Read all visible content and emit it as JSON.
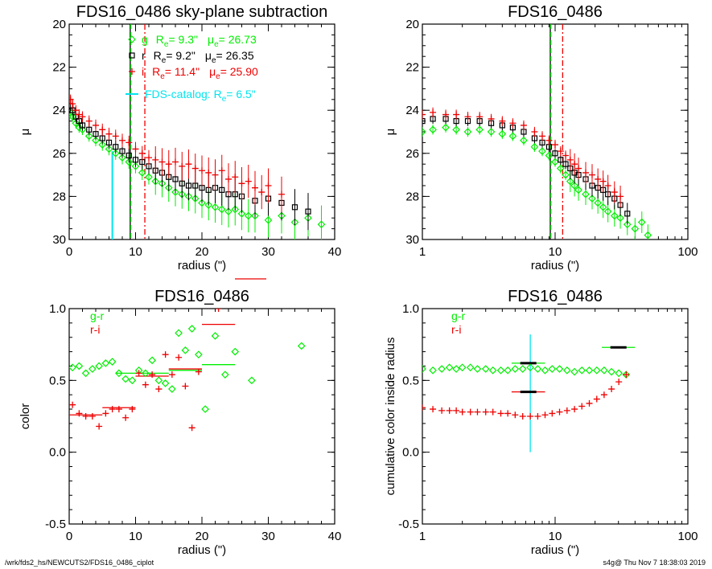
{
  "footer": {
    "path": "/wrk/fds2_hs/NEWCUTS2/FDS16_0486_ciplot",
    "stamp": "s4g@  Thu Nov  7 18:38:03 2019"
  },
  "colors": {
    "g": "#00ee00",
    "r": "#000000",
    "i": "#ee0000",
    "catalog": "#00e5ee"
  },
  "chart_data": [
    {
      "type": "scatter",
      "title": "FDS16_0486 sky-plane subtraction",
      "xlabel": "radius (\")",
      "ylabel": "μ",
      "xlim": [
        0,
        40
      ],
      "ylim": [
        30,
        20
      ],
      "xticks": [
        "0",
        "10",
        "20",
        "30",
        "40"
      ],
      "yticks": [
        "20",
        "22",
        "24",
        "26",
        "28",
        "30"
      ],
      "legend": [
        {
          "band": "g",
          "re": "R",
          "re_sub": "e",
          "re_val": "=   9.3\"",
          "mu": "μ",
          "mu_sub": "e",
          "mu_val": "= 26.73",
          "marker": "diamond",
          "color": "#00ee00"
        },
        {
          "band": "r",
          "re": "R",
          "re_sub": "e",
          "re_val": "=   9.2\"",
          "mu": "μ",
          "mu_sub": "e",
          "mu_val": "= 26.35",
          "marker": "square",
          "color": "#000000"
        },
        {
          "band": "i",
          "re": "R",
          "re_sub": "e",
          "re_val": "= 11.4\"",
          "mu": "μ",
          "mu_sub": "e",
          "mu_val": "= 25.90",
          "marker": "plus",
          "color": "#ee0000"
        }
      ],
      "catalog": {
        "label": "FDS-catalog: R",
        "sub": "e",
        "val": "=   6.5\"",
        "re": 6.5,
        "color": "#00e5ee"
      },
      "re_lines": {
        "g": 9.3,
        "r": 9.2,
        "i": 11.4
      },
      "series": [
        {
          "name": "g",
          "color": "#00ee00",
          "marker": "diamond",
          "x": [
            0.2,
            0.5,
            1,
            1.5,
            2,
            3,
            4,
            5,
            6,
            7,
            8,
            9,
            10,
            11,
            12,
            13,
            14,
            15,
            16,
            17,
            18,
            19,
            20,
            21,
            22,
            23,
            24,
            25,
            26,
            27,
            28,
            30,
            32,
            34,
            36,
            38
          ],
          "y": [
            24.1,
            24.3,
            24.6,
            24.8,
            24.9,
            25.2,
            25.4,
            25.6,
            25.8,
            26.0,
            26.2,
            26.4,
            26.6,
            26.9,
            27.1,
            27.3,
            27.4,
            27.6,
            27.8,
            27.9,
            28.0,
            28.1,
            28.3,
            28.4,
            28.5,
            28.6,
            28.7,
            28.6,
            28.8,
            28.9,
            28.9,
            29.1,
            28.9,
            29.2,
            29.0,
            29.3
          ]
        },
        {
          "name": "r",
          "color": "#000000",
          "marker": "square",
          "x": [
            0.2,
            0.5,
            1,
            1.5,
            2,
            3,
            4,
            5,
            6,
            7,
            8,
            9,
            10,
            11,
            12,
            13,
            14,
            15,
            16,
            17,
            18,
            19,
            20,
            21,
            22,
            23,
            24,
            25,
            26,
            28,
            30,
            32,
            34,
            36
          ],
          "y": [
            23.8,
            24.0,
            24.3,
            24.5,
            24.7,
            24.9,
            25.1,
            25.3,
            25.5,
            25.7,
            25.9,
            26.1,
            26.3,
            26.4,
            26.6,
            26.8,
            26.9,
            27.1,
            27.2,
            27.4,
            27.5,
            27.5,
            27.6,
            27.7,
            27.6,
            27.7,
            27.9,
            27.9,
            28.0,
            28.2,
            28.1,
            28.3,
            28.5,
            28.7
          ]
        },
        {
          "name": "i",
          "color": "#ee0000",
          "marker": "plus",
          "x": [
            0.2,
            0.5,
            1,
            1.5,
            2,
            3,
            4,
            5,
            6,
            7,
            8,
            9,
            10,
            11,
            12,
            13,
            14,
            15,
            16,
            17,
            18,
            19,
            20,
            21,
            22,
            23,
            24,
            25,
            26,
            27,
            28,
            29,
            30,
            32
          ],
          "y": [
            23.5,
            23.7,
            24.0,
            24.2,
            24.3,
            24.5,
            24.7,
            24.9,
            25.1,
            25.2,
            25.4,
            25.5,
            25.8,
            26.0,
            26.2,
            26.3,
            26.4,
            26.5,
            26.4,
            26.6,
            26.5,
            26.7,
            26.8,
            26.9,
            27.0,
            26.8,
            27.2,
            27.1,
            27.4,
            27.3,
            27.6,
            27.8,
            27.5,
            27.9
          ]
        }
      ]
    },
    {
      "type": "scatter",
      "title": "FDS16_0486",
      "xlabel": "radius (\")",
      "ylabel": "μ",
      "xscale": "log",
      "xlim": [
        1,
        100
      ],
      "ylim": [
        30,
        20
      ],
      "xticks": [
        "1",
        "10",
        "100"
      ],
      "yticks": [
        "20",
        "22",
        "24",
        "26",
        "28",
        "30"
      ],
      "re_lines": {
        "g": 9.3,
        "r": 9.2,
        "i": 11.4
      },
      "series": [
        {
          "name": "g",
          "color": "#00ee00",
          "marker": "diamond",
          "x": [
            1.0,
            1.2,
            1.5,
            1.8,
            2.2,
            2.7,
            3.3,
            4.0,
            4.8,
            5.8,
            7.0,
            8.0,
            9.0,
            10,
            11,
            12,
            13,
            14,
            15,
            17,
            19,
            21,
            23,
            25,
            28,
            31,
            35,
            40,
            45,
            50
          ],
          "y": [
            25.0,
            24.9,
            24.8,
            24.9,
            25.0,
            24.9,
            25.0,
            25.1,
            25.2,
            25.4,
            25.7,
            25.9,
            26.1,
            26.4,
            26.7,
            27.0,
            27.3,
            27.5,
            27.7,
            27.9,
            28.1,
            28.3,
            28.5,
            28.7,
            28.9,
            29.0,
            29.3,
            29.5,
            29.2,
            29.8
          ]
        },
        {
          "name": "r",
          "color": "#000000",
          "marker": "square",
          "x": [
            1.0,
            1.2,
            1.5,
            1.8,
            2.2,
            2.7,
            3.3,
            4.0,
            4.8,
            5.8,
            7.0,
            8.0,
            9.0,
            10,
            11,
            12,
            13,
            14,
            15,
            17,
            19,
            21,
            23,
            25,
            28,
            31,
            35
          ],
          "y": [
            24.5,
            24.4,
            24.4,
            24.5,
            24.5,
            24.5,
            24.6,
            24.7,
            24.8,
            25.0,
            25.3,
            25.5,
            25.7,
            26.0,
            26.3,
            26.5,
            26.7,
            26.9,
            27.0,
            27.2,
            27.5,
            27.6,
            27.7,
            27.9,
            28.1,
            28.4,
            28.8
          ]
        },
        {
          "name": "i",
          "color": "#ee0000",
          "marker": "plus",
          "x": [
            1.0,
            1.2,
            1.5,
            1.8,
            2.2,
            2.7,
            3.3,
            4.0,
            4.8,
            5.8,
            7.0,
            8.0,
            9.0,
            10,
            11,
            12,
            13,
            14,
            15,
            17,
            19,
            21,
            23,
            25,
            28,
            31
          ],
          "y": [
            24.2,
            24.1,
            24.2,
            24.2,
            24.3,
            24.3,
            24.4,
            24.5,
            24.6,
            24.7,
            25.0,
            25.2,
            25.4,
            25.6,
            25.9,
            26.1,
            26.3,
            26.5,
            26.7,
            26.9,
            27.0,
            27.2,
            27.3,
            27.5,
            27.8,
            28.0
          ]
        }
      ]
    },
    {
      "type": "scatter",
      "title": "FDS16_0486",
      "xlabel": "radius (\")",
      "ylabel": "color",
      "xlim": [
        0,
        40
      ],
      "ylim": [
        -0.5,
        1.0
      ],
      "xticks": [
        "0",
        "10",
        "20",
        "30",
        "40"
      ],
      "yticks": [
        "-0.5",
        "0.0",
        "0.5",
        "1.0"
      ],
      "legend": [
        {
          "label": "g-r",
          "color": "#00ee00"
        },
        {
          "label": "r-i",
          "color": "#ee0000"
        }
      ],
      "series": [
        {
          "name": "g-r",
          "color": "#00ee00",
          "marker": "diamond",
          "x": [
            0.5,
            1.5,
            2.5,
            3.5,
            4.5,
            5.5,
            6.5,
            7.5,
            8.5,
            9.5,
            10.5,
            11.5,
            12.5,
            13.5,
            14.5,
            15.5,
            16.5,
            17.5,
            18.5,
            19.5,
            20.5,
            22,
            23.5,
            25,
            27.5,
            35
          ],
          "y": [
            0.59,
            0.6,
            0.55,
            0.58,
            0.6,
            0.62,
            0.63,
            0.55,
            0.51,
            0.5,
            0.57,
            0.55,
            0.64,
            0.5,
            0.48,
            0.44,
            0.83,
            0.71,
            0.86,
            0.68,
            0.3,
            0.81,
            0.54,
            0.7,
            0.5,
            0.74
          ]
        },
        {
          "name": "r-i",
          "color": "#ee0000",
          "marker": "plus",
          "x": [
            0.5,
            1.5,
            2.5,
            3.5,
            4.5,
            5.5,
            6.5,
            7.5,
            8.5,
            9.5,
            10.5,
            11.5,
            12.5,
            13.5,
            14.5,
            15.5,
            16.5,
            17.5,
            18.5,
            19.5,
            22.5
          ],
          "y": [
            0.33,
            0.27,
            0.25,
            0.25,
            0.18,
            0.27,
            0.3,
            0.3,
            0.24,
            0.3,
            0.55,
            0.47,
            0.54,
            0.44,
            0.68,
            0.54,
            0.66,
            0.46,
            0.17,
            0.56,
            1.0
          ]
        }
      ],
      "bin_lines": {
        "g-r": [
          {
            "x": [
              7,
              15
            ],
            "y": 0.55
          },
          {
            "x": [
              15,
              20
            ],
            "y": 0.57
          },
          {
            "x": [
              20,
              25
            ],
            "y": 0.61
          }
        ],
        "r-i": [
          {
            "x": [
              0,
              5
            ],
            "y": 0.26
          },
          {
            "x": [
              5,
              10
            ],
            "y": 0.31
          },
          {
            "x": [
              10,
              15
            ],
            "y": 0.53
          },
          {
            "x": [
              15,
              20
            ],
            "y": 0.58
          },
          {
            "x": [
              20,
              25
            ],
            "y": 0.89
          }
        ]
      }
    },
    {
      "type": "scatter",
      "title": "FDS16_0486",
      "xlabel": "radius (\")",
      "ylabel": "cumulative color inside radius",
      "xscale": "log",
      "xlim": [
        1,
        100
      ],
      "ylim": [
        -0.5,
        1.0
      ],
      "xticks": [
        "1",
        "10",
        "100"
      ],
      "yticks": [
        "-0.5",
        "0.0",
        "0.5",
        "1.0"
      ],
      "legend": [
        {
          "label": "g-r",
          "color": "#00ee00"
        },
        {
          "label": "r-i",
          "color": "#ee0000"
        }
      ],
      "catalog_re": 6.5,
      "series": [
        {
          "name": "g-r",
          "color": "#00ee00",
          "marker": "diamond",
          "x": [
            1.0,
            1.2,
            1.4,
            1.6,
            1.8,
            2.0,
            2.3,
            2.6,
            3.0,
            3.4,
            3.9,
            4.4,
            5.0,
            5.7,
            6.5,
            7.4,
            8.4,
            9.5,
            10.8,
            12.3,
            14.0,
            15.9,
            18.1,
            20.6,
            23.4,
            26.6,
            30.2,
            34.3
          ],
          "y": [
            0.58,
            0.57,
            0.58,
            0.59,
            0.58,
            0.59,
            0.59,
            0.58,
            0.58,
            0.57,
            0.57,
            0.57,
            0.58,
            0.58,
            0.59,
            0.58,
            0.57,
            0.58,
            0.58,
            0.57,
            0.56,
            0.57,
            0.57,
            0.57,
            0.57,
            0.56,
            0.55,
            0.54
          ]
        },
        {
          "name": "r-i",
          "color": "#ee0000",
          "marker": "plus",
          "x": [
            1.0,
            1.2,
            1.4,
            1.6,
            1.8,
            2.0,
            2.3,
            2.6,
            3.0,
            3.4,
            3.9,
            4.4,
            5.0,
            5.7,
            6.5,
            7.4,
            8.4,
            9.5,
            10.8,
            12.3,
            14.0,
            15.9,
            18.1,
            20.6,
            23.4,
            26.6,
            30.2,
            34.3
          ],
          "y": [
            0.31,
            0.3,
            0.29,
            0.29,
            0.29,
            0.28,
            0.28,
            0.28,
            0.28,
            0.28,
            0.27,
            0.27,
            0.26,
            0.25,
            0.25,
            0.25,
            0.26,
            0.27,
            0.28,
            0.29,
            0.3,
            0.32,
            0.34,
            0.37,
            0.4,
            0.44,
            0.49,
            0.54
          ]
        }
      ],
      "bin_lines": {
        "g-r": [
          {
            "x": [
              4.7,
              8.4
            ],
            "y": 0.62
          },
          {
            "x": [
              22.5,
              40.0
            ],
            "y": 0.73
          }
        ],
        "r-i": [
          {
            "x": [
              4.7,
              8.4
            ],
            "y": 0.42
          }
        ]
      }
    }
  ]
}
